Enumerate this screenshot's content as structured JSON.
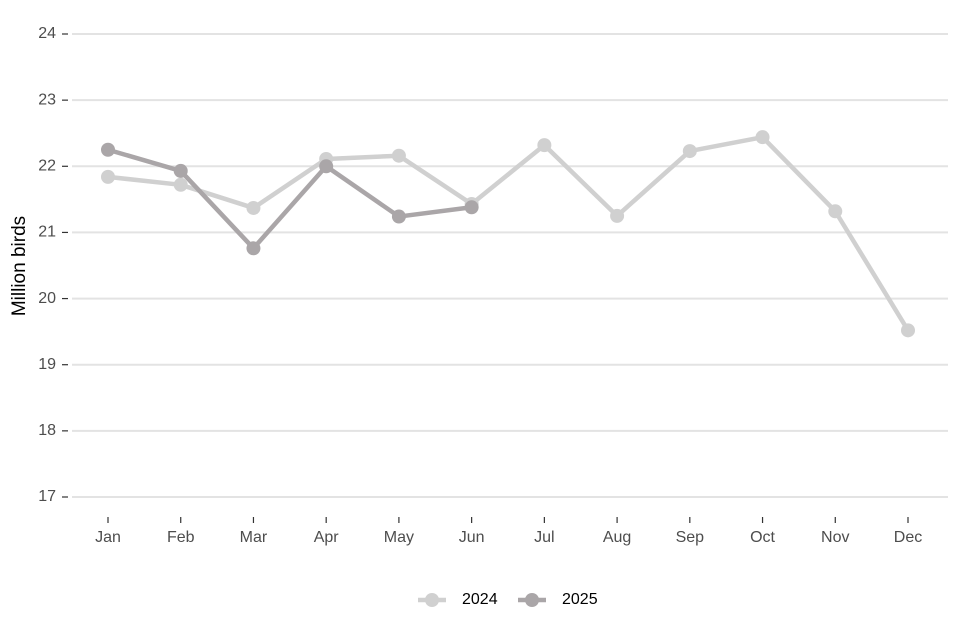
{
  "chart_data": {
    "type": "line",
    "y_label": "Million birds",
    "categories": [
      "Jan",
      "Feb",
      "Mar",
      "Apr",
      "May",
      "Jun",
      "Jul",
      "Aug",
      "Sep",
      "Oct",
      "Nov",
      "Dec"
    ],
    "series": [
      {
        "name": "2024",
        "color": "#d0d0d0",
        "values": [
          21.84,
          21.72,
          21.37,
          22.11,
          22.16,
          21.43,
          22.32,
          21.25,
          22.23,
          22.44,
          21.32,
          19.52
        ]
      },
      {
        "name": "2025",
        "color": "#aaa6a8",
        "values": [
          22.25,
          21.93,
          20.76,
          22.0,
          21.24,
          21.38,
          null,
          null,
          null,
          null,
          null,
          null
        ]
      }
    ],
    "ylim": [
      17,
      24
    ],
    "yticks": [
      17,
      18,
      19,
      20,
      21,
      22,
      23,
      24
    ],
    "grid": true,
    "legend": "bottom"
  }
}
